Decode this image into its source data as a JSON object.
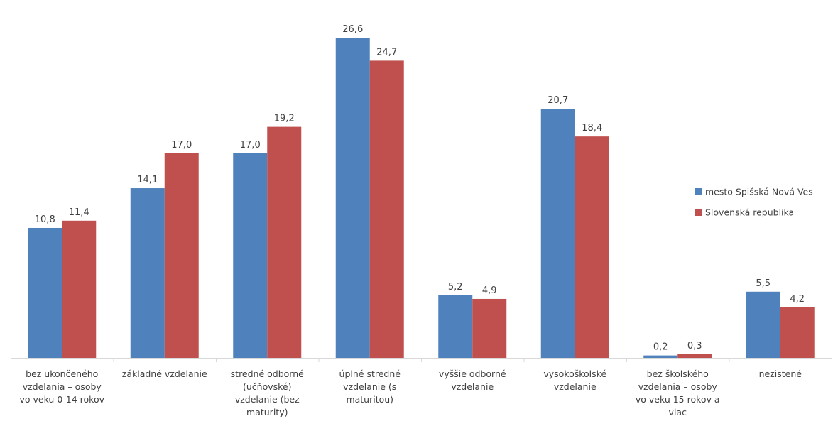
{
  "chart_data": {
    "type": "bar",
    "title": "",
    "xlabel": "",
    "ylabel": "",
    "ylim": [
      0,
      28.5
    ],
    "grid": false,
    "legend_position": "right",
    "categories": [
      [
        "bez ukončeného",
        "vzdelania – osoby",
        "vo veku 0-14 rokov"
      ],
      [
        "základné vzdelanie"
      ],
      [
        "stredné odborné",
        "(učňovské)",
        "vzdelanie (bez",
        "maturity)"
      ],
      [
        "úplné stredné",
        "vzdelanie (s",
        "maturitou)"
      ],
      [
        "vyššie odborné",
        "vzdelanie"
      ],
      [
        "vysokoškolské",
        "vzdelanie"
      ],
      [
        "bez školského",
        "vzdelania – osoby",
        "vo veku 15 rokov a",
        "viac"
      ],
      [
        "nezistené"
      ]
    ],
    "series": [
      {
        "name": "mesto Spišská Nová Ves",
        "color": "#4F81BD",
        "values": [
          10.8,
          14.1,
          17.0,
          26.6,
          5.2,
          20.7,
          0.2,
          5.5
        ],
        "labels": [
          "10,8",
          "14,1",
          "17,0",
          "26,6",
          "5,2",
          "20,7",
          "0,2",
          "5,5"
        ]
      },
      {
        "name": "Slovenská republika",
        "color": "#C0504D",
        "values": [
          11.4,
          17.0,
          19.2,
          24.7,
          4.9,
          18.4,
          0.3,
          4.2
        ],
        "labels": [
          "11,4",
          "17,0",
          "19,2",
          "24,7",
          "4,9",
          "18,4",
          "0,3",
          "4,2"
        ]
      }
    ]
  }
}
